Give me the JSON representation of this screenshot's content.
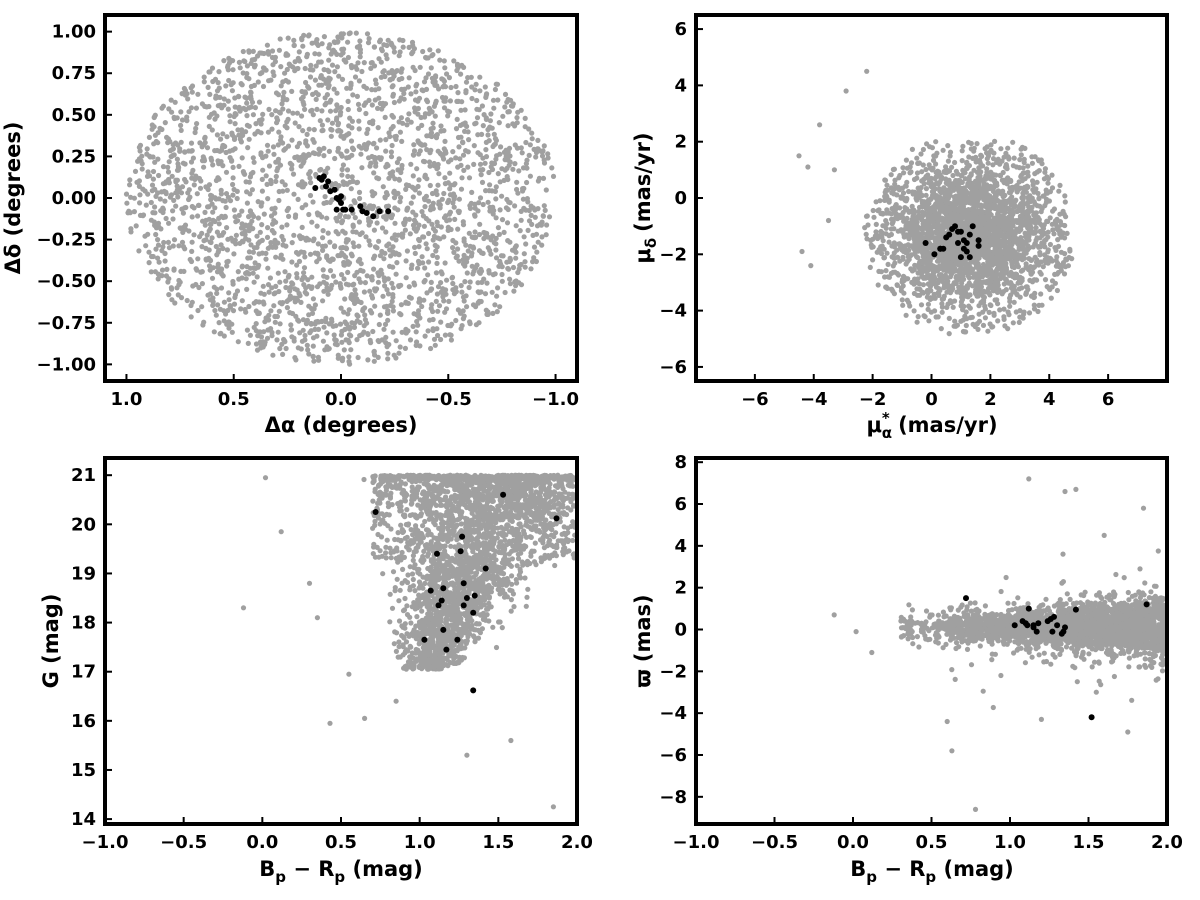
{
  "colors": {
    "field": "#a0a0a0",
    "members": "#000000",
    "frame": "#000000",
    "background": "#ffffff"
  },
  "chart_data": [
    {
      "id": "sky",
      "type": "scatter",
      "xlabel": "Δα (degrees)",
      "ylabel": "Δδ (degrees)",
      "xlim": [
        1.1,
        -1.1
      ],
      "ylim": [
        -1.1,
        1.1
      ],
      "x_reversed": true,
      "xticks": [
        1.0,
        0.5,
        0.0,
        -0.5,
        -1.0
      ],
      "yticks": [
        -1.0,
        -0.75,
        -0.5,
        -0.25,
        0.0,
        0.25,
        0.5,
        0.75,
        1.0
      ],
      "xtick_labels": [
        "1.0",
        "0.5",
        "0.0",
        "−0.5",
        "−1.0"
      ],
      "ytick_labels": [
        "−1.00",
        "−0.75",
        "−0.50",
        "−0.25",
        "0.00",
        "0.25",
        "0.50",
        "0.75",
        "1.00"
      ],
      "field_stars": {
        "distribution": "uniform disk",
        "center": [
          0.0,
          0.0
        ],
        "radius_deg": 1.0,
        "count": 2600
      },
      "series": [
        {
          "role": "members",
          "x": [
            0.1,
            0.08,
            0.06,
            0.07,
            0.12,
            0.09,
            0.05,
            0.03,
            0.0,
            -0.02,
            0.02,
            0.0,
            -0.05,
            -0.09,
            -0.1,
            -0.12,
            -0.15,
            -0.18,
            -0.22,
            0.02,
            -0.01,
            0.01
          ],
          "y": [
            0.12,
            0.13,
            0.1,
            0.07,
            0.06,
            0.11,
            0.04,
            0.05,
            0.01,
            -0.07,
            -0.07,
            -0.03,
            -0.07,
            -0.05,
            -0.08,
            -0.09,
            -0.11,
            -0.08,
            -0.08,
            0.0,
            -0.07,
            -0.01
          ]
        }
      ]
    },
    {
      "id": "proper-motion",
      "type": "scatter",
      "xlabel": "μ*α (mas/yr)",
      "ylabel": "μδ (mas/yr)",
      "xlim": [
        -8,
        8
      ],
      "ylim": [
        -6.5,
        6.5
      ],
      "xticks": [
        -6,
        -4,
        -2,
        0,
        2,
        4,
        6
      ],
      "yticks": [
        -6,
        -4,
        -2,
        0,
        2,
        4,
        6
      ],
      "xtick_labels": [
        "−6",
        "−4",
        "−2",
        "0",
        "2",
        "4",
        "6"
      ],
      "ytick_labels": [
        "−6",
        "−4",
        "−2",
        "0",
        "2",
        "4",
        "6"
      ],
      "field_stars": {
        "distribution": "gaussian core inside a circular cut",
        "center": [
          1.3,
          -1.3
        ],
        "sigma": [
          1.3,
          1.1
        ],
        "cut_radius": 3.6,
        "count": 2900,
        "outliers": {
          "x": [
            -4.5,
            -4.2,
            -3.8,
            -4.1,
            -3.5,
            -2.2,
            -2.9,
            -3.3,
            -4.4
          ],
          "y": [
            1.5,
            1.1,
            2.6,
            -2.4,
            -0.8,
            4.5,
            3.8,
            1.0,
            -1.9
          ]
        }
      },
      "series": [
        {
          "role": "members",
          "x": [
            -0.2,
            0.1,
            0.3,
            0.4,
            0.5,
            0.6,
            0.7,
            0.8,
            0.9,
            1.0,
            1.0,
            1.1,
            1.1,
            1.2,
            1.2,
            1.3,
            1.3,
            1.4,
            1.6,
            1.6,
            0.9,
            0.3
          ],
          "y": [
            -1.6,
            -2.0,
            -1.8,
            -1.8,
            -1.4,
            -1.3,
            -1.1,
            -1.0,
            -1.6,
            -1.2,
            -2.1,
            -1.5,
            -1.8,
            -1.9,
            -1.6,
            -1.3,
            -2.1,
            -1.0,
            -1.5,
            -1.7,
            -1.2,
            -1.8
          ]
        }
      ]
    },
    {
      "id": "cmd",
      "type": "scatter",
      "xlabel": "Bp − Rp (mag)",
      "ylabel": "G (mag)",
      "xlim": [
        -1.0,
        2.0
      ],
      "ylim": [
        13.9,
        21.35
      ],
      "xticks": [
        -1.0,
        -0.5,
        0.0,
        0.5,
        1.0,
        1.5,
        2.0
      ],
      "yticks": [
        14,
        15,
        16,
        17,
        18,
        19,
        20,
        21
      ],
      "xtick_labels": [
        "−1.0",
        "−0.5",
        "0.0",
        "0.5",
        "1.0",
        "1.5",
        "2.0"
      ],
      "ytick_labels": [
        "14",
        "15",
        "16",
        "17",
        "18",
        "19",
        "20",
        "21"
      ],
      "field_stars": {
        "distribution": "colour-magnitude sequence",
        "count": 3000,
        "outliers": {
          "x": [
            0.02,
            -0.12,
            0.12,
            0.3,
            0.35,
            0.43,
            0.55,
            0.65,
            0.85,
            1.85,
            1.58,
            1.3
          ],
          "y": [
            20.95,
            18.3,
            19.85,
            18.8,
            18.1,
            15.95,
            16.95,
            16.05,
            16.4,
            14.25,
            15.6,
            15.3
          ]
        }
      },
      "series": [
        {
          "role": "members",
          "x": [
            0.72,
            1.53,
            1.87,
            1.27,
            1.11,
            1.26,
            1.42,
            1.07,
            1.15,
            1.28,
            1.3,
            1.35,
            1.14,
            1.12,
            1.28,
            1.15,
            1.34,
            1.03,
            1.24,
            1.17,
            1.34
          ],
          "y": [
            20.25,
            20.6,
            20.12,
            19.75,
            19.4,
            19.45,
            19.1,
            18.65,
            18.7,
            18.8,
            18.5,
            18.55,
            18.45,
            18.35,
            18.35,
            17.85,
            18.2,
            17.65,
            17.65,
            17.45,
            16.62
          ]
        }
      ]
    },
    {
      "id": "parallax",
      "type": "scatter",
      "xlabel": "Bp − Rp (mag)",
      "ylabel": "ϖ (mas)",
      "xlim": [
        -1.0,
        2.0
      ],
      "ylim": [
        -9.3,
        8.2
      ],
      "xticks": [
        -1.0,
        -0.5,
        0.0,
        0.5,
        1.0,
        1.5,
        2.0
      ],
      "yticks": [
        -8,
        -6,
        -4,
        -2,
        0,
        2,
        4,
        6,
        8
      ],
      "xtick_labels": [
        "−1.0",
        "−0.5",
        "0.0",
        "0.5",
        "1.0",
        "1.5",
        "2.0"
      ],
      "ytick_labels": [
        "−8",
        "−6",
        "−4",
        "−2",
        "0",
        "2",
        "4",
        "6",
        "8"
      ],
      "field_stars": {
        "distribution": "gaussian band around zero parallax",
        "count": 3000,
        "outliers": {
          "x": [
            -0.12,
            0.02,
            0.12,
            0.63,
            0.6,
            0.78,
            1.12,
            1.35,
            1.42,
            1.85,
            1.75,
            1.2,
            1.55,
            1.6
          ],
          "y": [
            0.7,
            -0.1,
            -1.1,
            -5.8,
            -4.4,
            -8.6,
            7.2,
            6.6,
            6.7,
            5.8,
            -4.9,
            -4.3,
            -3.0,
            4.5
          ]
        }
      },
      "series": [
        {
          "role": "members",
          "x": [
            0.72,
            1.03,
            1.08,
            1.1,
            1.12,
            1.15,
            1.17,
            1.18,
            1.24,
            1.26,
            1.27,
            1.28,
            1.3,
            1.33,
            1.35,
            1.42,
            1.52,
            1.87,
            1.15,
            1.34,
            1.11
          ],
          "y": [
            1.5,
            0.2,
            0.4,
            0.3,
            1.0,
            0.2,
            -0.1,
            0.3,
            0.4,
            0.5,
            -0.1,
            0.6,
            0.2,
            -0.2,
            0.1,
            0.95,
            -4.2,
            1.2,
            0.1,
            -0.1,
            0.2
          ]
        }
      ]
    }
  ]
}
